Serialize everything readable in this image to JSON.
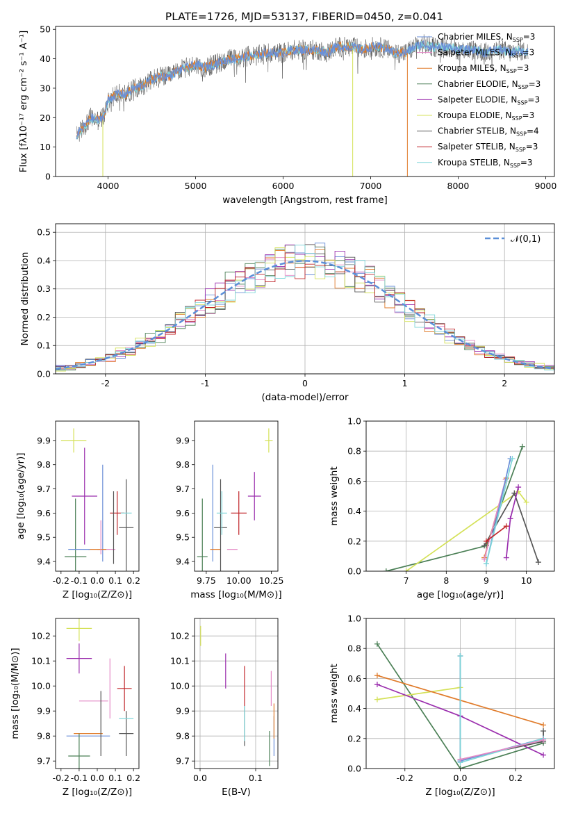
{
  "figure_title": "PLATE=1726, MJD=53137, FIBERID=0450, z=0.041",
  "colors": {
    "chabrier_miles": "#6a8fd8",
    "salpeter_miles": "#e48ac6",
    "kroupa_miles": "#e07b2a",
    "chabrier_elodie": "#4a7f55",
    "salpeter_elodie": "#9b2fae",
    "kroupa_elodie": "#d4e157",
    "chabrier_stelib": "#555555",
    "salpeter_stelib": "#c0262a",
    "kroupa_stelib": "#7fd6d9",
    "normal_fit": "#5b8fd8",
    "grid": "#b0b0b0"
  },
  "chart_data": [
    {
      "id": "spectrum",
      "type": "line",
      "title": "PLATE=1726, MJD=53137, FIBERID=0450, z=0.041",
      "xlabel": "wavelength [Angstrom, rest frame]",
      "ylabel": "Flux [fλ10⁻¹⁷ erg cm⁻² s⁻¹ A⁻¹]",
      "xlim": [
        3400,
        9100
      ],
      "ylim": [
        0,
        51
      ],
      "xticks": [
        4000,
        5000,
        6000,
        7000,
        8000,
        9000
      ],
      "yticks": [
        0,
        10,
        20,
        30,
        40,
        50
      ],
      "legend": "right",
      "series": [
        {
          "name": "Chabrier MILES, NSSP=3",
          "color": "#6a8fd8"
        },
        {
          "name": "Salpeter MILES, NSSP=3",
          "color": "#e48ac6"
        },
        {
          "name": "Kroupa MILES, NSSP=3",
          "color": "#e07b2a"
        },
        {
          "name": "Chabrier ELODIE, NSSP=3",
          "color": "#4a7f55"
        },
        {
          "name": "Salpeter ELODIE, NSSP=3",
          "color": "#9b2fae"
        },
        {
          "name": "Kroupa ELODIE, NSSP=3",
          "color": "#d4e157"
        },
        {
          "name": "Chabrier STELIB, NSSP=4",
          "color": "#555555"
        },
        {
          "name": "Salpeter STELIB, NSSP=3",
          "color": "#c0262a"
        },
        {
          "name": "Kroupa STELIB, NSSP=3",
          "color": "#7fd6d9"
        }
      ],
      "continuum": [
        [
          3640,
          14
        ],
        [
          3700,
          16
        ],
        [
          3800,
          20
        ],
        [
          3900,
          19
        ],
        [
          3960,
          21
        ],
        [
          4000,
          26
        ],
        [
          4100,
          28
        ],
        [
          4200,
          28
        ],
        [
          4300,
          30
        ],
        [
          4400,
          31
        ],
        [
          4500,
          33
        ],
        [
          4600,
          34
        ],
        [
          4700,
          34
        ],
        [
          4800,
          36
        ],
        [
          4900,
          37
        ],
        [
          5000,
          38
        ],
        [
          5100,
          37
        ],
        [
          5200,
          38
        ],
        [
          5300,
          39
        ],
        [
          5400,
          40
        ],
        [
          5500,
          40
        ],
        [
          5600,
          41
        ],
        [
          5700,
          41
        ],
        [
          5800,
          42
        ],
        [
          5900,
          42
        ],
        [
          6000,
          42
        ],
        [
          6100,
          43
        ],
        [
          6200,
          43
        ],
        [
          6300,
          43
        ],
        [
          6400,
          43
        ],
        [
          6500,
          42
        ],
        [
          6600,
          44
        ],
        [
          6700,
          44
        ],
        [
          6800,
          44
        ],
        [
          6900,
          43
        ],
        [
          7000,
          44
        ],
        [
          7100,
          44
        ],
        [
          7200,
          43
        ],
        [
          7300,
          42
        ],
        [
          7400,
          42
        ],
        [
          7500,
          44
        ],
        [
          7600,
          45
        ],
        [
          7700,
          44
        ],
        [
          7800,
          44
        ],
        [
          7900,
          44
        ],
        [
          8000,
          43
        ],
        [
          8100,
          43
        ],
        [
          8200,
          43
        ],
        [
          8300,
          42
        ],
        [
          8400,
          43
        ],
        [
          8500,
          43
        ],
        [
          8600,
          42
        ],
        [
          8700,
          43
        ],
        [
          8800,
          42
        ]
      ]
    },
    {
      "id": "residuals",
      "type": "histogram",
      "xlabel": "(data-model)/error",
      "ylabel": "Normed distribution",
      "xlim": [
        -2.5,
        2.5
      ],
      "ylim": [
        0,
        0.53
      ],
      "xticks": [
        -2,
        -1,
        0,
        1,
        2
      ],
      "yticks": [
        0.0,
        0.1,
        0.2,
        0.3,
        0.4,
        0.5
      ],
      "legend": "top-right",
      "fit_label": "𝒩(0,1)",
      "grid": true
    },
    {
      "id": "age_vs_Z",
      "type": "scatter",
      "xlabel": "Z [log₁₀(Z/Z⊙)]",
      "ylabel": "age  [log₁₀(age/yr)]",
      "xlim": [
        -0.23,
        0.23
      ],
      "ylim": [
        9.36,
        9.98
      ],
      "xticks": [
        -0.2,
        -0.1,
        0.0,
        0.1,
        0.2
      ],
      "yticks": [
        9.4,
        9.5,
        9.6,
        9.7,
        9.8,
        9.9
      ],
      "points": [
        {
          "x": 0.03,
          "y": 9.6,
          "xerr": 0.0,
          "yerr": 0.2,
          "color": "#6a8fd8"
        },
        {
          "x": 0.05,
          "y": 9.45,
          "xerr": 0.05,
          "yerr": 0.0,
          "color": "#e48ac6"
        },
        {
          "x": 0.0,
          "y": 9.45,
          "xerr": 0.05,
          "yerr": 0.0,
          "color": "#e07b2a"
        },
        {
          "x": -0.12,
          "y": 9.42,
          "xerr": 0.06,
          "yerr": 0.24,
          "color": "#4a7f55"
        },
        {
          "x": -0.07,
          "y": 9.67,
          "xerr": 0.07,
          "yerr": 0.2,
          "color": "#9b2fae"
        },
        {
          "x": -0.13,
          "y": 9.9,
          "xerr": 0.07,
          "yerr": 0.05,
          "color": "#d4e157"
        },
        {
          "x": 0.16,
          "y": 9.54,
          "xerr": 0.04,
          "yerr": 0.2,
          "color": "#555555"
        },
        {
          "x": 0.11,
          "y": 9.6,
          "xerr": 0.04,
          "yerr": 0.09,
          "color": "#c0262a"
        },
        {
          "x": 0.16,
          "y": 9.6,
          "xerr": 0.03,
          "yerr": 0.0,
          "color": "#7fd6d9"
        },
        {
          "x": 0.09,
          "y": 9.54,
          "xerr": 0.0,
          "yerr": 0.15,
          "color": "#555555"
        },
        {
          "x": -0.1,
          "y": 9.45,
          "xerr": 0.06,
          "yerr": 0.0,
          "color": "#6a8fd8"
        },
        {
          "x": 0.02,
          "y": 9.5,
          "xerr": 0.0,
          "yerr": 0.07,
          "color": "#e48ac6"
        }
      ]
    },
    {
      "id": "age_vs_mass",
      "type": "scatter",
      "xlabel": "mass [log₁₀(M/M⊙)]",
      "ylabel": "",
      "xlim": [
        9.66,
        10.3
      ],
      "ylim": [
        9.36,
        9.98
      ],
      "xticks": [
        9.75,
        10.0,
        10.25
      ],
      "xticklabels": [
        "9.75",
        "10.00",
        "10.25"
      ],
      "yticks": [
        9.4,
        9.5,
        9.6,
        9.7,
        9.8,
        9.9
      ],
      "points": [
        {
          "x": 9.8,
          "y": 9.6,
          "xerr": 0.0,
          "yerr": 0.2,
          "color": "#6a8fd8"
        },
        {
          "x": 9.95,
          "y": 9.45,
          "xerr": 0.04,
          "yerr": 0.0,
          "color": "#e48ac6"
        },
        {
          "x": 9.82,
          "y": 9.45,
          "xerr": 0.04,
          "yerr": 0.0,
          "color": "#e07b2a"
        },
        {
          "x": 9.72,
          "y": 9.42,
          "xerr": 0.04,
          "yerr": 0.24,
          "color": "#4a7f55"
        },
        {
          "x": 10.12,
          "y": 9.67,
          "xerr": 0.05,
          "yerr": 0.1,
          "color": "#9b2fae"
        },
        {
          "x": 10.23,
          "y": 9.9,
          "xerr": 0.03,
          "yerr": 0.05,
          "color": "#d4e157"
        },
        {
          "x": 9.86,
          "y": 9.54,
          "xerr": 0.05,
          "yerr": 0.2,
          "color": "#555555"
        },
        {
          "x": 10.0,
          "y": 9.6,
          "xerr": 0.06,
          "yerr": 0.09,
          "color": "#c0262a"
        },
        {
          "x": 9.87,
          "y": 9.6,
          "xerr": 0.04,
          "yerr": 0.09,
          "color": "#7fd6d9"
        }
      ]
    },
    {
      "id": "weight_vs_age",
      "type": "line",
      "xlabel": "age  [log₁₀(age/yr)]",
      "ylabel": "mass weight",
      "xlim": [
        6.0,
        10.7
      ],
      "ylim": [
        0,
        1.0
      ],
      "xticks": [
        7,
        8,
        9,
        10
      ],
      "yticks": [
        0.0,
        0.2,
        0.4,
        0.6,
        0.8,
        1.0
      ],
      "grid": true,
      "series": [
        {
          "color": "#4a7f55",
          "x": [
            6.5,
            9.0,
            9.9
          ],
          "y": [
            0.0,
            0.17,
            0.83
          ]
        },
        {
          "color": "#d4e157",
          "x": [
            7.0,
            9.8,
            10.0
          ],
          "y": [
            0.0,
            0.53,
            0.46
          ]
        },
        {
          "color": "#555555",
          "x": [
            8.95,
            9.7,
            10.3
          ],
          "y": [
            0.17,
            0.52,
            0.06
          ]
        },
        {
          "color": "#9b2fae",
          "x": [
            9.5,
            9.6,
            9.8
          ],
          "y": [
            0.09,
            0.35,
            0.56
          ]
        },
        {
          "color": "#e07b2a",
          "x": [
            8.95,
            9.5
          ],
          "y": [
            0.09,
            0.62
          ]
        },
        {
          "color": "#e48ac6",
          "x": [
            8.95,
            9.48
          ],
          "y": [
            0.08,
            0.61
          ]
        },
        {
          "color": "#6a8fd8",
          "x": [
            9.0,
            9.6
          ],
          "y": [
            0.05,
            0.75
          ]
        },
        {
          "color": "#7fd6d9",
          "x": [
            9.0,
            9.65
          ],
          "y": [
            0.05,
            0.75
          ]
        },
        {
          "color": "#c0262a",
          "x": [
            9.0,
            9.5
          ],
          "y": [
            0.2,
            0.3
          ]
        }
      ]
    },
    {
      "id": "mass_vs_Z",
      "type": "scatter",
      "xlabel": "Z [log₁₀(Z/Z⊙)]",
      "ylabel": "mass [log₁₀(M/M⊙)]",
      "xlim": [
        -0.23,
        0.23
      ],
      "ylim": [
        9.67,
        10.27
      ],
      "xticks": [
        -0.2,
        -0.1,
        0.0,
        0.1,
        0.2
      ],
      "yticks": [
        9.7,
        9.8,
        9.9,
        10.0,
        10.1,
        10.2
      ],
      "points": [
        {
          "x": -0.05,
          "y": 9.8,
          "xerr": 0.12,
          "yerr": 0.0,
          "color": "#6a8fd8"
        },
        {
          "x": -0.02,
          "y": 9.94,
          "xerr": 0.08,
          "yerr": 0.0,
          "color": "#e48ac6"
        },
        {
          "x": -0.05,
          "y": 9.81,
          "xerr": 0.08,
          "yerr": 0.0,
          "color": "#e07b2a"
        },
        {
          "x": -0.1,
          "y": 9.72,
          "xerr": 0.06,
          "yerr": 0.09,
          "color": "#4a7f55"
        },
        {
          "x": -0.1,
          "y": 10.11,
          "xerr": 0.07,
          "yerr": 0.06,
          "color": "#9b2fae"
        },
        {
          "x": -0.1,
          "y": 10.23,
          "xerr": 0.07,
          "yerr": 0.05,
          "color": "#d4e157"
        },
        {
          "x": 0.16,
          "y": 9.81,
          "xerr": 0.04,
          "yerr": 0.09,
          "color": "#555555"
        },
        {
          "x": 0.15,
          "y": 9.99,
          "xerr": 0.04,
          "yerr": 0.09,
          "color": "#c0262a"
        },
        {
          "x": 0.16,
          "y": 9.87,
          "xerr": 0.04,
          "yerr": 0.0,
          "color": "#7fd6d9"
        },
        {
          "x": 0.07,
          "y": 9.99,
          "xerr": 0.0,
          "yerr": 0.12,
          "color": "#e48ac6"
        },
        {
          "x": 0.02,
          "y": 9.85,
          "xerr": 0.0,
          "yerr": 0.13,
          "color": "#555555"
        }
      ]
    },
    {
      "id": "mass_vs_EBV",
      "type": "scatter",
      "xlabel": "E(B-V)",
      "ylabel": "",
      "xlim": [
        -0.01,
        0.14
      ],
      "ylim": [
        9.67,
        10.27
      ],
      "xticks": [
        0.0,
        0.1
      ],
      "yticks": [
        9.7,
        9.8,
        9.9,
        10.0,
        10.1,
        10.2
      ],
      "grid": true,
      "points": [
        {
          "x": 0.133,
          "y": 9.8,
          "yerr": 0.08,
          "color": "#6a8fd8"
        },
        {
          "x": 0.128,
          "y": 9.99,
          "yerr": 0.07,
          "color": "#e48ac6"
        },
        {
          "x": 0.133,
          "y": 9.86,
          "yerr": 0.07,
          "color": "#e07b2a"
        },
        {
          "x": 0.125,
          "y": 9.75,
          "yerr": 0.07,
          "color": "#4a7f55"
        },
        {
          "x": 0.046,
          "y": 10.06,
          "yerr": 0.07,
          "color": "#9b2fae"
        },
        {
          "x": 0.001,
          "y": 10.2,
          "yerr": 0.04,
          "color": "#d4e157"
        },
        {
          "x": 0.08,
          "y": 9.84,
          "yerr": 0.08,
          "color": "#555555"
        },
        {
          "x": 0.08,
          "y": 10.0,
          "yerr": 0.08,
          "color": "#c0262a"
        },
        {
          "x": 0.08,
          "y": 9.85,
          "yerr": 0.07,
          "color": "#7fd6d9"
        }
      ]
    },
    {
      "id": "weight_vs_Z",
      "type": "line",
      "xlabel": "Z [log₁₀(Z/Z⊙)]",
      "ylabel": "mass weight",
      "xlim": [
        -0.34,
        0.34
      ],
      "ylim": [
        0,
        1.0
      ],
      "xticks": [
        -0.2,
        0.0,
        0.2
      ],
      "yticks": [
        0.0,
        0.2,
        0.4,
        0.6,
        0.8,
        1.0
      ],
      "grid": true,
      "series": [
        {
          "color": "#4a7f55",
          "x": [
            -0.3,
            0.0,
            0.3
          ],
          "y": [
            0.83,
            0.0,
            0.17
          ]
        },
        {
          "color": "#d4e157",
          "x": [
            -0.3,
            0.0
          ],
          "y": [
            0.46,
            0.54
          ]
        },
        {
          "color": "#9b2fae",
          "x": [
            -0.3,
            0.0,
            0.3
          ],
          "y": [
            0.56,
            0.35,
            0.09
          ]
        },
        {
          "color": "#e07b2a",
          "x": [
            -0.3,
            0.3
          ],
          "y": [
            0.62,
            0.29
          ]
        },
        {
          "color": "#555555",
          "x": [
            0.0,
            0.0,
            0.3,
            0.3
          ],
          "y": [
            0.75,
            0.06,
            0.18,
            0.25
          ]
        },
        {
          "color": "#6a8fd8",
          "x": [
            0.0,
            0.0,
            0.3
          ],
          "y": [
            0.75,
            0.05,
            0.2
          ]
        },
        {
          "color": "#7fd6d9",
          "x": [
            0.0,
            0.0,
            0.3
          ],
          "y": [
            0.75,
            0.04,
            0.2
          ]
        },
        {
          "color": "#e48ac6",
          "x": [
            0.0,
            0.3
          ],
          "y": [
            0.06,
            0.19
          ]
        }
      ]
    }
  ]
}
